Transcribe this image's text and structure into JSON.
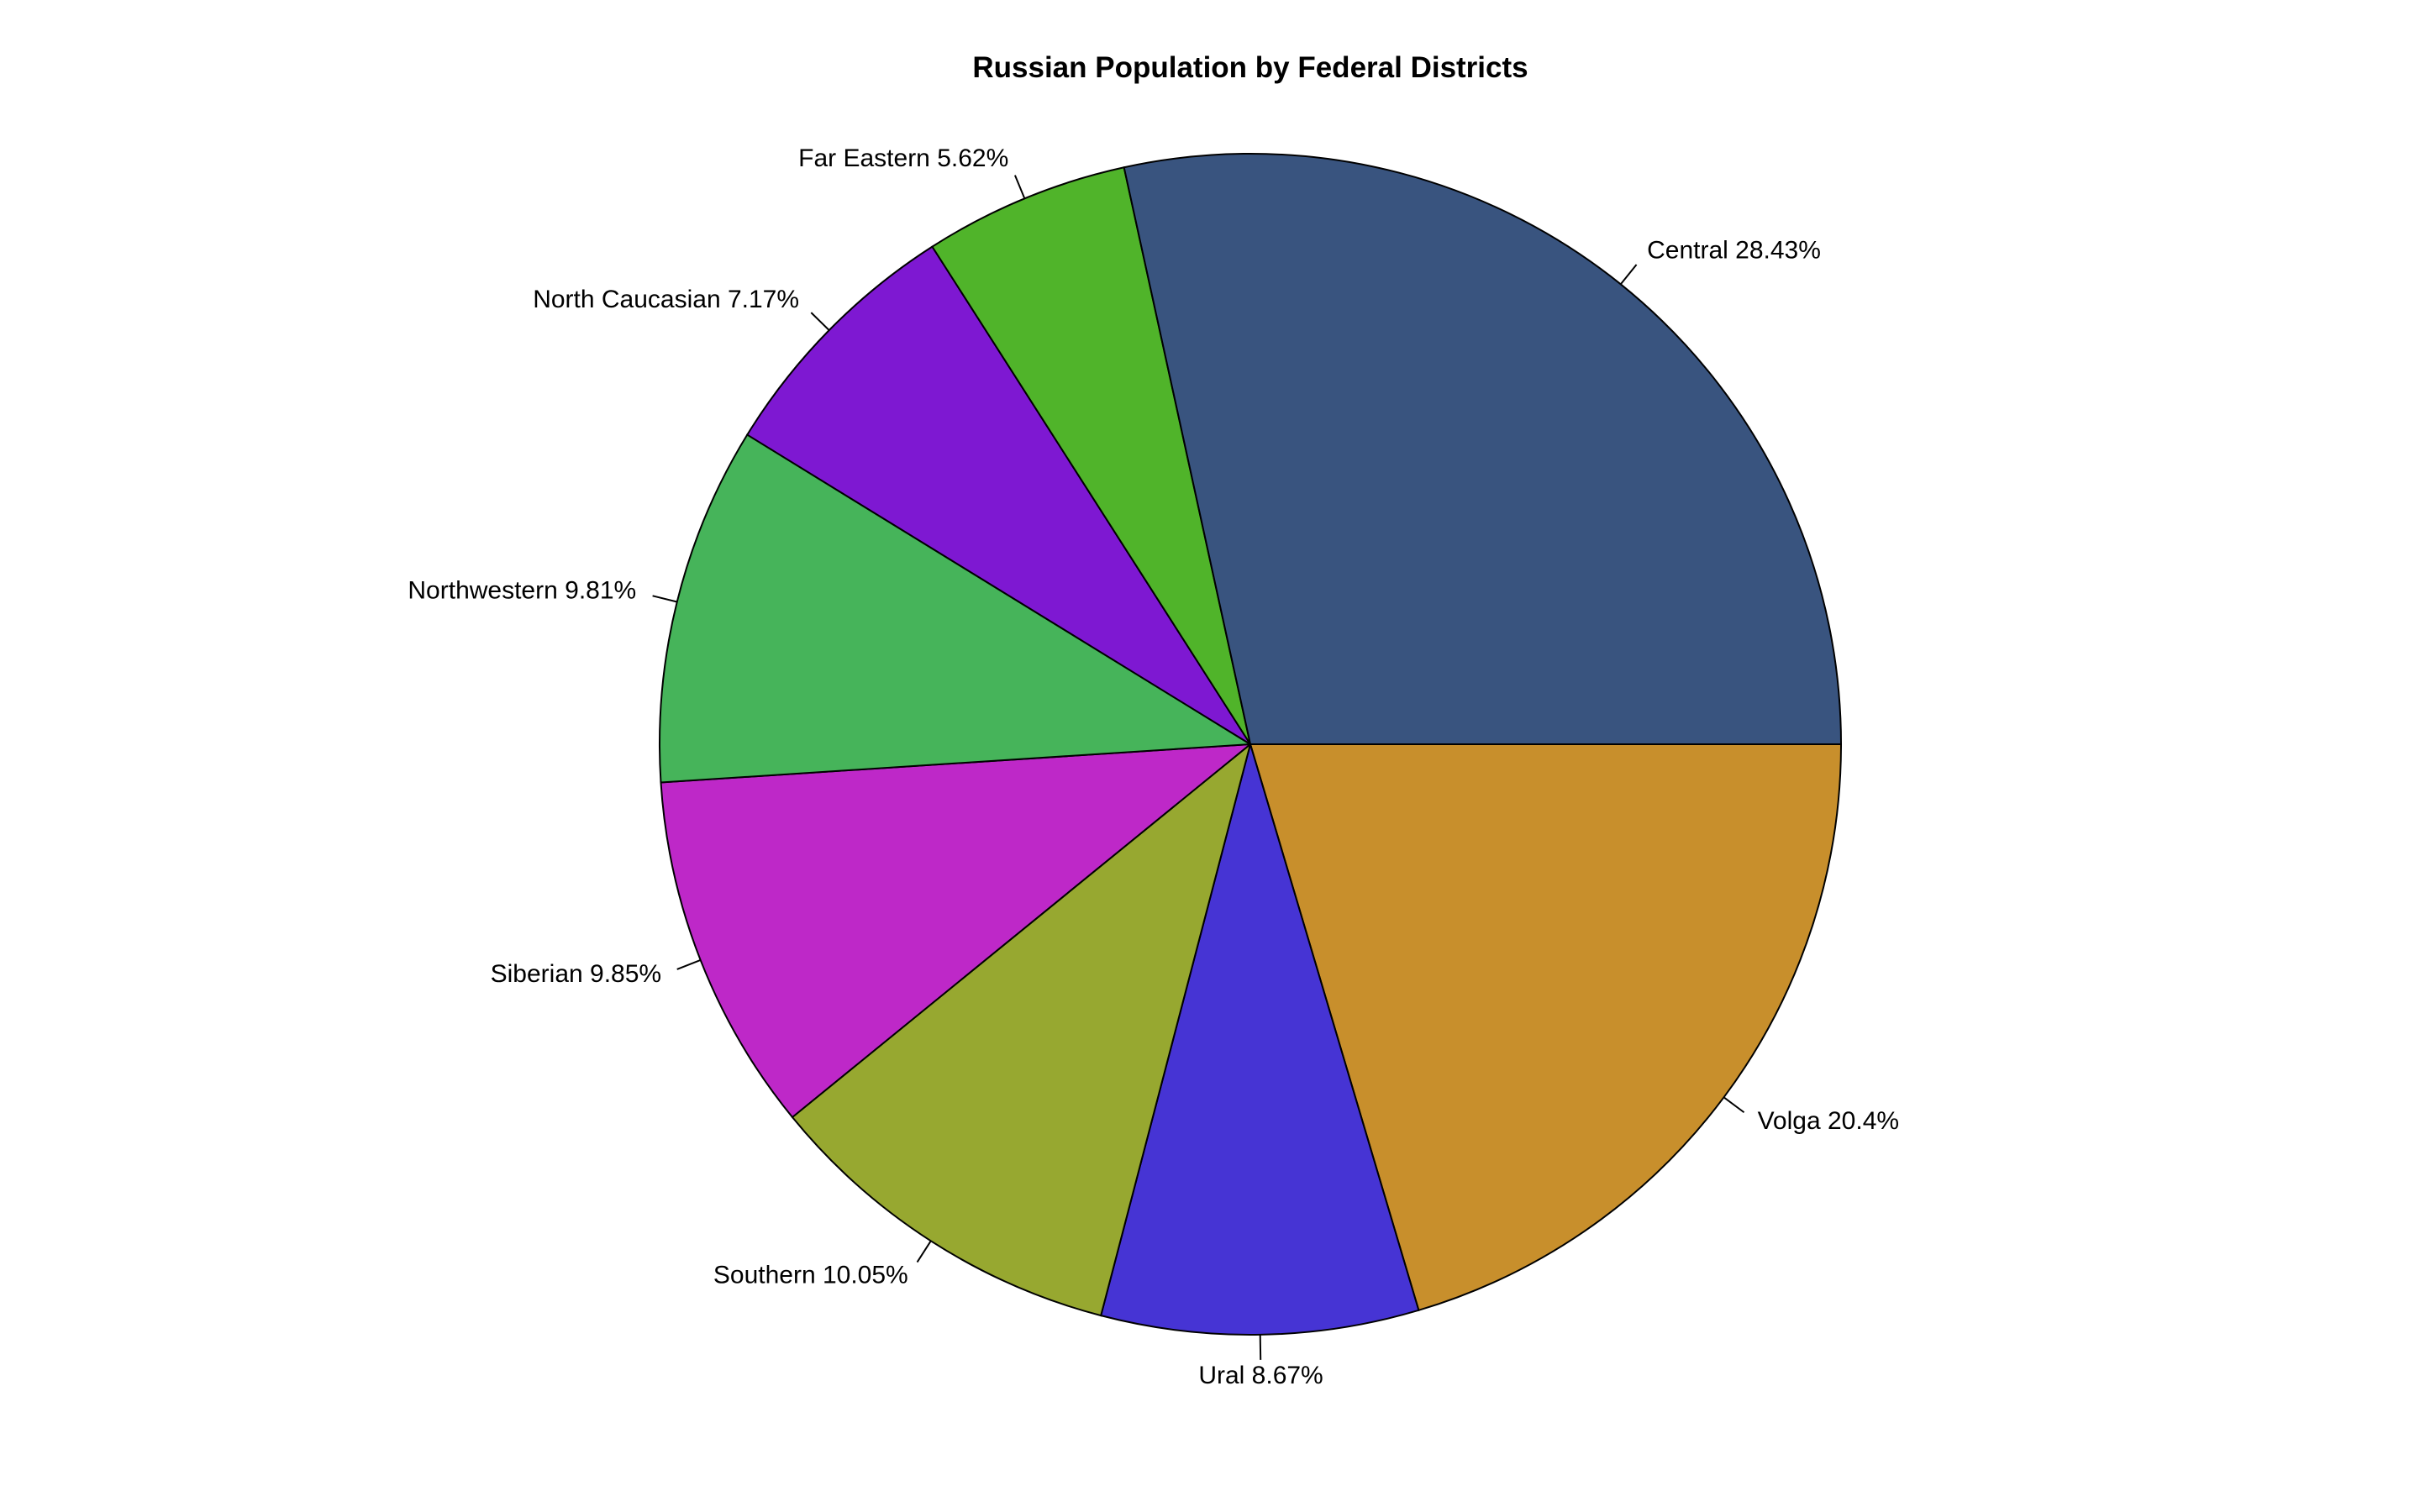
{
  "chart_data": {
    "type": "pie",
    "title": "Russian Population by Federal Districts",
    "start_angle_deg": 0,
    "direction": "clockwise",
    "slices": [
      {
        "name": "Volga",
        "label": "Volga 20.4%",
        "value": 20.4,
        "color": "#C88F2C"
      },
      {
        "name": "Ural",
        "label": "Ural 8.67%",
        "value": 8.67,
        "color": "#4634D4"
      },
      {
        "name": "Southern",
        "label": "Southern 10.05%",
        "value": 10.05,
        "color": "#97A830"
      },
      {
        "name": "Siberian",
        "label": "Siberian 9.85%",
        "value": 9.85,
        "color": "#BE28C8"
      },
      {
        "name": "Northwestern",
        "label": "Northwestern 9.81%",
        "value": 9.81,
        "color": "#46B45A"
      },
      {
        "name": "North Caucasian",
        "label": "North Caucasian 7.17%",
        "value": 7.17,
        "color": "#7E18D2"
      },
      {
        "name": "Far Eastern",
        "label": "Far Eastern 5.62%",
        "value": 5.62,
        "color": "#50B42A"
      },
      {
        "name": "Central",
        "label": "Central 28.43%",
        "value": 28.43,
        "color": "#39547F"
      }
    ]
  }
}
